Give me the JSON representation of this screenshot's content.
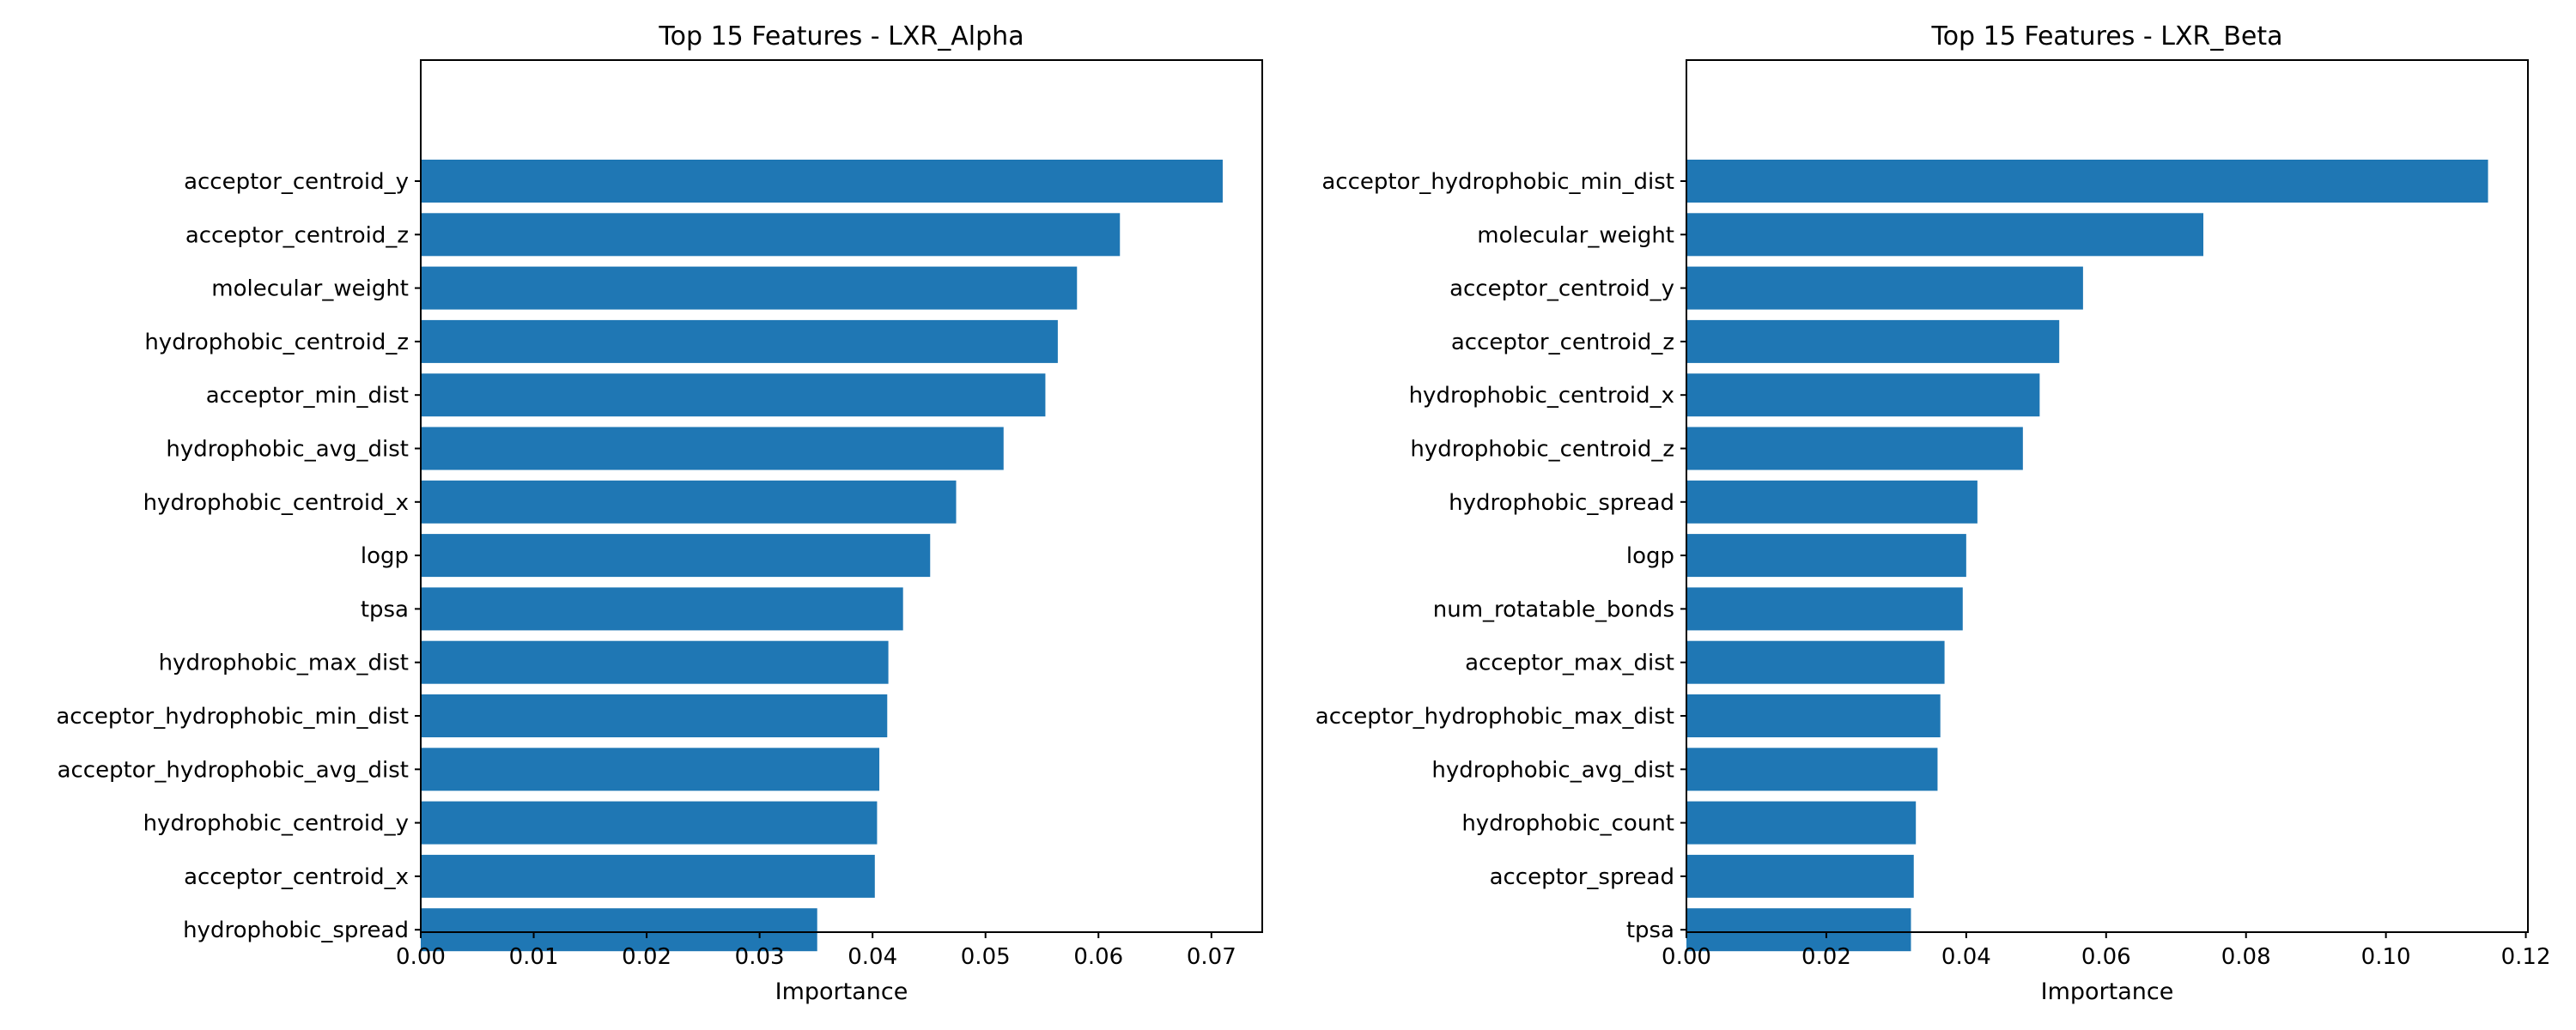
{
  "chart_data": [
    {
      "type": "bar",
      "orientation": "horizontal",
      "title": "Top 15 Features - LXR_Alpha",
      "xlabel": "Importance",
      "ylabel": "",
      "xlim": [
        0,
        0.0745
      ],
      "xticks": [
        0.0,
        0.01,
        0.02,
        0.03,
        0.04,
        0.05,
        0.06,
        0.07
      ],
      "xtick_labels": [
        "0.00",
        "0.01",
        "0.02",
        "0.03",
        "0.04",
        "0.05",
        "0.06",
        "0.07"
      ],
      "grid": false,
      "bar_color": "#1f77b4",
      "categories": [
        "acceptor_centroid_y",
        "acceptor_centroid_z",
        "molecular_weight",
        "hydrophobic_centroid_z",
        "acceptor_min_dist",
        "hydrophobic_avg_dist",
        "hydrophobic_centroid_x",
        "logp",
        "tpsa",
        "hydrophobic_max_dist",
        "acceptor_hydrophobic_min_dist",
        "acceptor_hydrophobic_avg_dist",
        "hydrophobic_centroid_y",
        "acceptor_centroid_x",
        "hydrophobic_spread"
      ],
      "values": [
        0.071,
        0.0619,
        0.0581,
        0.0564,
        0.0553,
        0.0516,
        0.0474,
        0.0451,
        0.0427,
        0.0414,
        0.0413,
        0.0406,
        0.0404,
        0.0402,
        0.0351
      ]
    },
    {
      "type": "bar",
      "orientation": "horizontal",
      "title": "Top 15 Features - LXR_Beta",
      "xlabel": "Importance",
      "ylabel": "",
      "xlim": [
        0,
        0.1203
      ],
      "xticks": [
        0.0,
        0.02,
        0.04,
        0.06,
        0.08,
        0.1,
        0.12
      ],
      "xtick_labels": [
        "0.00",
        "0.02",
        "0.04",
        "0.06",
        "0.08",
        "0.10",
        "0.12"
      ],
      "grid": false,
      "bar_color": "#1f77b4",
      "categories": [
        "acceptor_hydrophobic_min_dist",
        "molecular_weight",
        "acceptor_centroid_y",
        "acceptor_centroid_z",
        "hydrophobic_centroid_x",
        "hydrophobic_centroid_z",
        "hydrophobic_spread",
        "logp",
        "num_rotatable_bonds",
        "acceptor_max_dist",
        "acceptor_hydrophobic_max_dist",
        "hydrophobic_avg_dist",
        "hydrophobic_count",
        "acceptor_spread",
        "tpsa"
      ],
      "values": [
        0.1146,
        0.0739,
        0.0567,
        0.0533,
        0.0505,
        0.0481,
        0.0416,
        0.04,
        0.0395,
        0.0369,
        0.0363,
        0.0359,
        0.0328,
        0.0325,
        0.0321
      ]
    }
  ]
}
